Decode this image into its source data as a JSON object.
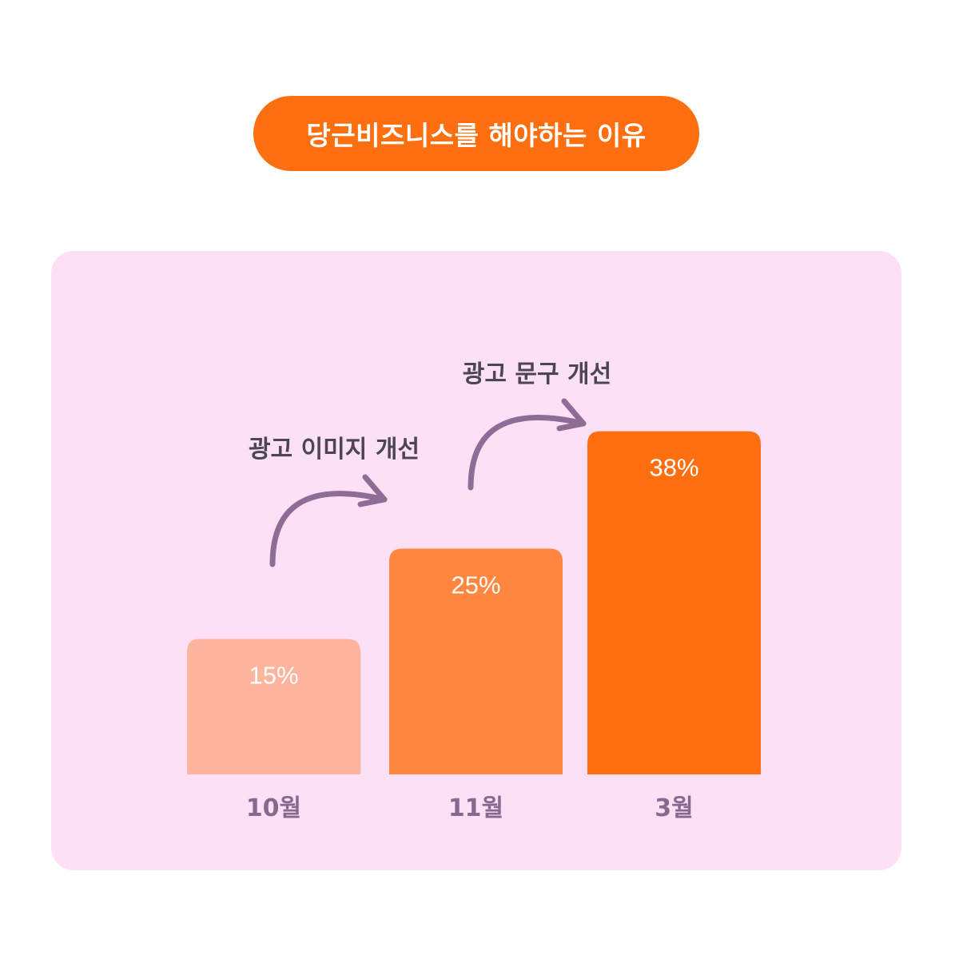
{
  "title": "당근비즈니스를 해야하는 이유",
  "colors": {
    "title_bg": "#FF6F0F",
    "card_bg": "#FDE0F6",
    "arrow": "#8E6C95",
    "annotation_text": "#4B4650",
    "category_text": "#87698F"
  },
  "chart_data": {
    "type": "bar",
    "categories": [
      "10월",
      "11월",
      "3월"
    ],
    "values": [
      15,
      25,
      38
    ],
    "value_labels": [
      "15%",
      "25%",
      "38%"
    ],
    "bar_colors": [
      "#FFB49E",
      "#FF873F",
      "#FF6F0F"
    ],
    "ylim": [
      0,
      40
    ],
    "grid": false,
    "legend": "none",
    "annotations": [
      {
        "text": "광고 이미지 개선",
        "from": "10월",
        "to": "11월"
      },
      {
        "text": "광고 문구 개선",
        "from": "11월",
        "to": "3월"
      }
    ]
  }
}
